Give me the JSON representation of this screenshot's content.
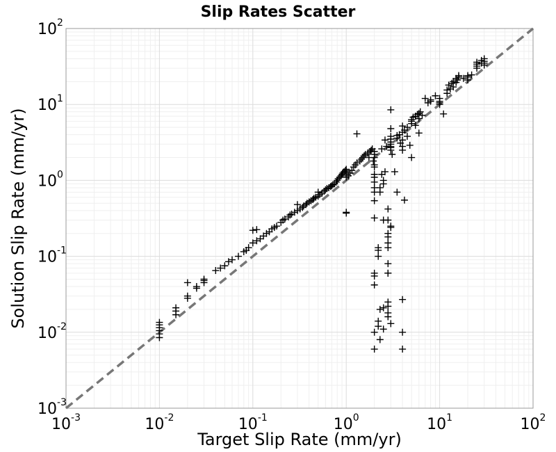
{
  "chart_data": {
    "type": "scatter",
    "title": "Slip Rates Scatter",
    "xlabel": "Target Slip Rate (mm/yr)",
    "ylabel": "Solution Slip Rate (mm/yr)",
    "xscale": "log",
    "yscale": "log",
    "xlim": [
      0.001,
      100
    ],
    "ylim": [
      0.001,
      100
    ],
    "grid": true,
    "marker": "plus",
    "marker_color": "#000000",
    "reference_line": {
      "kind": "y=x",
      "style": "dashed",
      "color": "#777777"
    },
    "x_ticks": [
      {
        "value": 0.001,
        "base": "10",
        "exp": "-3"
      },
      {
        "value": 0.01,
        "base": "10",
        "exp": "-2"
      },
      {
        "value": 0.1,
        "base": "10",
        "exp": "-1"
      },
      {
        "value": 1,
        "base": "10",
        "exp": "0"
      },
      {
        "value": 10,
        "base": "10",
        "exp": "1"
      },
      {
        "value": 100,
        "base": "10",
        "exp": "2"
      }
    ],
    "y_ticks": [
      {
        "value": 0.001,
        "base": "10",
        "exp": "-3"
      },
      {
        "value": 0.01,
        "base": "10",
        "exp": "-2"
      },
      {
        "value": 0.1,
        "base": "10",
        "exp": "-1"
      },
      {
        "value": 1,
        "base": "10",
        "exp": "0"
      },
      {
        "value": 10,
        "base": "10",
        "exp": "1"
      },
      {
        "value": 100,
        "base": "10",
        "exp": "2"
      }
    ],
    "points": [
      [
        0.01,
        0.0085
      ],
      [
        0.01,
        0.0095
      ],
      [
        0.01,
        0.0105
      ],
      [
        0.01,
        0.0115
      ],
      [
        0.01,
        0.0125
      ],
      [
        0.01,
        0.0135
      ],
      [
        0.015,
        0.017
      ],
      [
        0.015,
        0.019
      ],
      [
        0.015,
        0.021
      ],
      [
        0.02,
        0.045
      ],
      [
        0.02,
        0.03
      ],
      [
        0.02,
        0.028
      ],
      [
        0.025,
        0.038
      ],
      [
        0.025,
        0.04
      ],
      [
        0.03,
        0.045
      ],
      [
        0.03,
        0.048
      ],
      [
        0.03,
        0.05
      ],
      [
        0.04,
        0.065
      ],
      [
        0.045,
        0.07
      ],
      [
        0.05,
        0.075
      ],
      [
        0.055,
        0.085
      ],
      [
        0.06,
        0.09
      ],
      [
        0.07,
        0.1
      ],
      [
        0.08,
        0.115
      ],
      [
        0.085,
        0.12
      ],
      [
        0.09,
        0.13
      ],
      [
        0.1,
        0.15
      ],
      [
        0.1,
        0.22
      ],
      [
        0.11,
        0.225
      ],
      [
        0.11,
        0.16
      ],
      [
        0.12,
        0.17
      ],
      [
        0.13,
        0.185
      ],
      [
        0.14,
        0.2
      ],
      [
        0.15,
        0.21
      ],
      [
        0.16,
        0.23
      ],
      [
        0.17,
        0.24
      ],
      [
        0.18,
        0.25
      ],
      [
        0.2,
        0.28
      ],
      [
        0.21,
        0.3
      ],
      [
        0.22,
        0.31
      ],
      [
        0.24,
        0.33
      ],
      [
        0.25,
        0.35
      ],
      [
        0.26,
        0.36
      ],
      [
        0.28,
        0.38
      ],
      [
        0.3,
        0.4
      ],
      [
        0.3,
        0.48
      ],
      [
        0.32,
        0.42
      ],
      [
        0.34,
        0.44
      ],
      [
        0.35,
        0.46
      ],
      [
        0.37,
        0.48
      ],
      [
        0.38,
        0.5
      ],
      [
        0.4,
        0.52
      ],
      [
        0.42,
        0.54
      ],
      [
        0.44,
        0.56
      ],
      [
        0.45,
        0.58
      ],
      [
        0.47,
        0.6
      ],
      [
        0.5,
        0.62
      ],
      [
        0.5,
        0.7
      ],
      [
        0.52,
        0.65
      ],
      [
        0.55,
        0.68
      ],
      [
        0.58,
        0.72
      ],
      [
        0.6,
        0.75
      ],
      [
        0.62,
        0.78
      ],
      [
        0.65,
        0.8
      ],
      [
        0.68,
        0.83
      ],
      [
        0.7,
        0.85
      ],
      [
        0.72,
        0.88
      ],
      [
        0.75,
        0.9
      ],
      [
        0.78,
        0.95
      ],
      [
        0.8,
        1.0
      ],
      [
        0.82,
        1.05
      ],
      [
        0.85,
        1.1
      ],
      [
        0.88,
        1.15
      ],
      [
        0.9,
        1.2
      ],
      [
        0.92,
        1.25
      ],
      [
        0.95,
        1.3
      ],
      [
        0.98,
        1.35
      ],
      [
        1.0,
        1.1
      ],
      [
        1.0,
        1.2
      ],
      [
        1.0,
        1.3
      ],
      [
        1.0,
        1.4
      ],
      [
        1.0,
        0.38
      ],
      [
        1.0,
        0.37
      ],
      [
        1.05,
        1.15
      ],
      [
        1.1,
        1.25
      ],
      [
        1.15,
        1.35
      ],
      [
        1.2,
        1.5
      ],
      [
        1.25,
        1.6
      ],
      [
        1.3,
        1.7
      ],
      [
        1.3,
        4.1
      ],
      [
        1.4,
        1.8
      ],
      [
        1.45,
        1.9
      ],
      [
        1.5,
        2.0
      ],
      [
        1.55,
        2.1
      ],
      [
        1.6,
        2.2
      ],
      [
        1.7,
        2.3
      ],
      [
        1.75,
        2.0
      ],
      [
        1.8,
        2.4
      ],
      [
        1.85,
        2.5
      ],
      [
        1.9,
        2.6
      ],
      [
        1.95,
        1.8
      ],
      [
        2.0,
        2.2
      ],
      [
        2.0,
        2.4
      ],
      [
        2.0,
        2.0
      ],
      [
        2.0,
        1.6
      ],
      [
        2.0,
        1.5
      ],
      [
        2.0,
        1.2
      ],
      [
        2.0,
        1.1
      ],
      [
        2.0,
        0.95
      ],
      [
        2.0,
        0.8
      ],
      [
        2.0,
        0.7
      ],
      [
        2.0,
        0.54
      ],
      [
        2.0,
        0.32
      ],
      [
        2.0,
        0.06
      ],
      [
        2.0,
        0.055
      ],
      [
        2.0,
        0.042
      ],
      [
        2.0,
        0.01
      ],
      [
        2.0,
        0.006
      ],
      [
        2.2,
        0.12
      ],
      [
        2.2,
        0.13
      ],
      [
        2.2,
        0.1
      ],
      [
        2.2,
        0.014
      ],
      [
        2.2,
        0.012
      ],
      [
        2.3,
        0.008
      ],
      [
        2.3,
        0.02
      ],
      [
        2.3,
        0.7
      ],
      [
        2.3,
        0.8
      ],
      [
        2.4,
        1.2
      ],
      [
        2.4,
        2.6
      ],
      [
        2.5,
        1.0
      ],
      [
        2.5,
        0.9
      ],
      [
        2.5,
        0.3
      ],
      [
        2.5,
        0.021
      ],
      [
        2.5,
        0.011
      ],
      [
        2.6,
        1.3
      ],
      [
        2.6,
        3.4
      ],
      [
        2.7,
        2.8
      ],
      [
        2.8,
        0.42
      ],
      [
        2.8,
        0.3
      ],
      [
        2.8,
        0.2
      ],
      [
        2.8,
        0.18
      ],
      [
        2.8,
        0.15
      ],
      [
        2.8,
        0.13
      ],
      [
        2.8,
        0.08
      ],
      [
        2.8,
        0.06
      ],
      [
        2.8,
        0.06
      ],
      [
        2.8,
        0.025
      ],
      [
        2.8,
        0.022
      ],
      [
        2.8,
        0.018
      ],
      [
        2.8,
        0.016
      ],
      [
        3.0,
        0.24
      ],
      [
        3.0,
        0.25
      ],
      [
        3.0,
        0.013
      ],
      [
        3.0,
        8.5
      ],
      [
        3.0,
        4.8
      ],
      [
        3.0,
        3.5
      ],
      [
        3.0,
        2.7
      ],
      [
        3.0,
        2.5
      ],
      [
        3.0,
        2.8
      ],
      [
        3.0,
        3.0
      ],
      [
        3.0,
        3.2
      ],
      [
        3.0,
        3.8
      ],
      [
        3.1,
        2.2
      ],
      [
        3.3,
        1.3
      ],
      [
        3.5,
        0.7
      ],
      [
        3.5,
        3.6
      ],
      [
        3.5,
        3.9
      ],
      [
        3.7,
        4.0
      ],
      [
        3.8,
        3.1
      ],
      [
        4.0,
        3.4
      ],
      [
        4.0,
        4.3
      ],
      [
        4.0,
        5.2
      ],
      [
        4.0,
        2.5
      ],
      [
        4.0,
        2.8
      ],
      [
        4.0,
        0.01
      ],
      [
        4.0,
        0.027
      ],
      [
        4.0,
        0.006
      ],
      [
        4.2,
        0.55
      ],
      [
        4.2,
        4.6
      ],
      [
        4.5,
        5.0
      ],
      [
        4.5,
        3.8
      ],
      [
        4.8,
        2.9
      ],
      [
        5.0,
        5.6
      ],
      [
        5.0,
        6.0
      ],
      [
        5.0,
        6.3
      ],
      [
        5.0,
        2.0
      ],
      [
        5.2,
        6.8
      ],
      [
        5.5,
        7.0
      ],
      [
        5.5,
        5.3
      ],
      [
        5.8,
        7.4
      ],
      [
        6.0,
        7.6
      ],
      [
        6.0,
        4.2
      ],
      [
        6.0,
        6.5
      ],
      [
        6.2,
        8.0
      ],
      [
        6.5,
        7.2
      ],
      [
        7.0,
        12.0
      ],
      [
        7.5,
        10.5
      ],
      [
        8.0,
        11.0
      ],
      [
        8.0,
        11.5
      ],
      [
        9.0,
        13.0
      ],
      [
        10.0,
        10.0
      ],
      [
        10.0,
        10.5
      ],
      [
        10.0,
        11.0
      ],
      [
        10.0,
        12.0
      ],
      [
        11.0,
        7.5
      ],
      [
        12.0,
        14.0
      ],
      [
        12.0,
        15.5
      ],
      [
        12.5,
        18.0
      ],
      [
        13.0,
        16.0
      ],
      [
        13.5,
        19.0
      ],
      [
        14.0,
        17.0
      ],
      [
        14.0,
        20.0
      ],
      [
        15.0,
        22.0
      ],
      [
        15.0,
        19.5
      ],
      [
        15.5,
        21.0
      ],
      [
        16.0,
        23.0
      ],
      [
        16.0,
        24.0
      ],
      [
        18.0,
        22.0
      ],
      [
        20.0,
        24.0
      ],
      [
        20.0,
        21.0
      ],
      [
        20.0,
        23.0
      ],
      [
        22.0,
        24.5
      ],
      [
        25.0,
        30.0
      ],
      [
        25.0,
        32.0
      ],
      [
        25.0,
        34.0
      ],
      [
        25.0,
        36.0
      ],
      [
        28.0,
        35.0
      ],
      [
        28.0,
        38.0
      ],
      [
        30.0,
        40.0
      ],
      [
        30.0,
        33.0
      ],
      [
        30.0,
        35.0
      ],
      [
        30.0,
        37.0
      ]
    ]
  }
}
